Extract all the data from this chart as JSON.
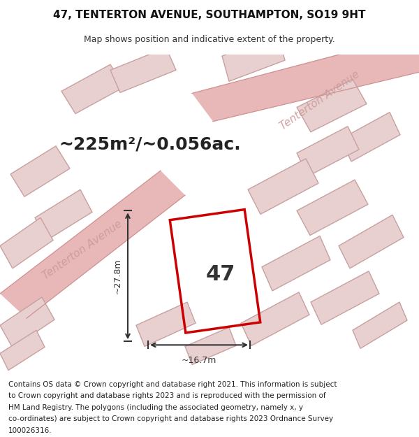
{
  "title": "47, TENTERTON AVENUE, SOUTHAMPTON, SO19 9HT",
  "subtitle": "Map shows position and indicative extent of the property.",
  "area_text": "~225m²/~0.056ac.",
  "property_number": "47",
  "width_label": "~16.7m",
  "height_label": "~27.8m",
  "street_label_1": "Tenterton Avenue",
  "street_label_2": "Tenterton Avenue",
  "footer_lines": [
    "Contains OS data © Crown copyright and database right 2021. This information is subject",
    "to Crown copyright and database rights 2023 and is reproduced with the permission of",
    "HM Land Registry. The polygons (including the associated geometry, namely x, y",
    "co-ordinates) are subject to Crown copyright and database rights 2023 Ordnance Survey",
    "100026316."
  ],
  "bg_color": "#f5f0f0",
  "title_area_color": "#ffffff",
  "property_color": "#cc0000",
  "road_color": "#e8b8b8",
  "building_fc": "#e8d0d0",
  "building_ec": "#c8a0a0",
  "dim_color": "#333333",
  "street_color": "#cc9999",
  "title_fontsize": 11,
  "subtitle_fontsize": 9,
  "area_fontsize": 18,
  "property_number_fontsize": 22,
  "label_fontsize": 9,
  "street_fontsize": 11,
  "footer_fontsize": 7.5
}
